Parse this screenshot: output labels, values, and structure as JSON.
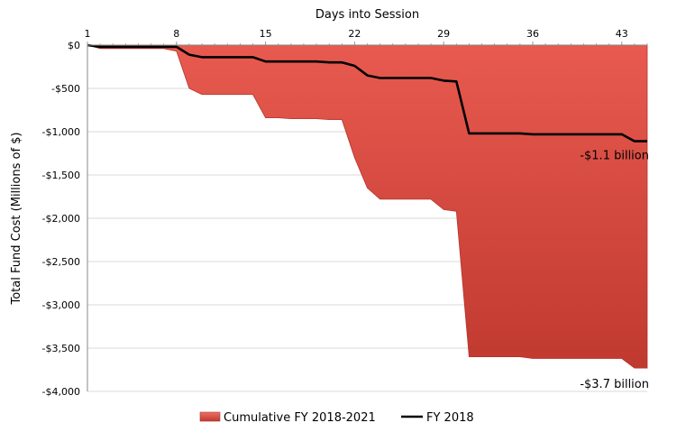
{
  "chart_data": {
    "type": "area",
    "title": "",
    "xlabel": "Days into Session",
    "ylabel": "Total Fund Cost (Millions of $)",
    "x_axis_position": "top",
    "xlim": [
      1,
      45
    ],
    "ylim": [
      -4000,
      0
    ],
    "x_ticks": [
      1,
      8,
      15,
      22,
      29,
      36,
      43
    ],
    "y_ticks": [
      0,
      -500,
      -1000,
      -1500,
      -2000,
      -2500,
      -3000,
      -3500,
      -4000
    ],
    "y_tick_labels": [
      "$0",
      "-$500",
      "-$1,000",
      "-$1,500",
      "-$2,000",
      "-$2,500",
      "-$3,000",
      "-$3,500",
      "-$4,000"
    ],
    "grid": true,
    "legend_position": "bottom",
    "series": [
      {
        "name": "Cumulative FY 2018-2021",
        "kind": "area",
        "color": "#d9453a",
        "x": [
          1,
          2,
          3,
          4,
          5,
          6,
          7,
          8,
          9,
          10,
          11,
          12,
          13,
          14,
          15,
          16,
          17,
          18,
          19,
          20,
          21,
          22,
          23,
          24,
          25,
          26,
          27,
          28,
          29,
          30,
          31,
          32,
          33,
          34,
          35,
          36,
          37,
          38,
          39,
          40,
          41,
          42,
          43,
          44,
          45
        ],
        "values": [
          0,
          -40,
          -40,
          -40,
          -40,
          -40,
          -40,
          -70,
          -500,
          -570,
          -570,
          -570,
          -570,
          -570,
          -840,
          -840,
          -850,
          -850,
          -850,
          -860,
          -860,
          -1300,
          -1650,
          -1780,
          -1780,
          -1780,
          -1780,
          -1780,
          -1900,
          -1920,
          -3600,
          -3600,
          -3600,
          -3600,
          -3600,
          -3620,
          -3620,
          -3620,
          -3620,
          -3620,
          -3620,
          -3620,
          -3620,
          -3730,
          -3730
        ]
      },
      {
        "name": "FY 2018",
        "kind": "line",
        "color": "#000000",
        "x": [
          1,
          2,
          3,
          4,
          5,
          6,
          7,
          8,
          9,
          10,
          11,
          12,
          13,
          14,
          15,
          16,
          17,
          18,
          19,
          20,
          21,
          22,
          23,
          24,
          25,
          26,
          27,
          28,
          29,
          30,
          31,
          32,
          33,
          34,
          35,
          36,
          37,
          38,
          39,
          40,
          41,
          42,
          43,
          44,
          45
        ],
        "values": [
          0,
          -20,
          -20,
          -20,
          -20,
          -20,
          -20,
          -20,
          -110,
          -140,
          -140,
          -140,
          -140,
          -140,
          -190,
          -190,
          -190,
          -190,
          -190,
          -200,
          -200,
          -240,
          -350,
          -380,
          -380,
          -380,
          -380,
          -380,
          -410,
          -420,
          -1020,
          -1020,
          -1020,
          -1020,
          -1020,
          -1030,
          -1030,
          -1030,
          -1030,
          -1030,
          -1030,
          -1030,
          -1030,
          -1110,
          -1110
        ]
      }
    ],
    "annotations": [
      {
        "text": "-$1.1 billion",
        "x": 45,
        "y": -1110
      },
      {
        "text": "-$3.7 billion",
        "x": 45,
        "y": -3730
      }
    ]
  }
}
